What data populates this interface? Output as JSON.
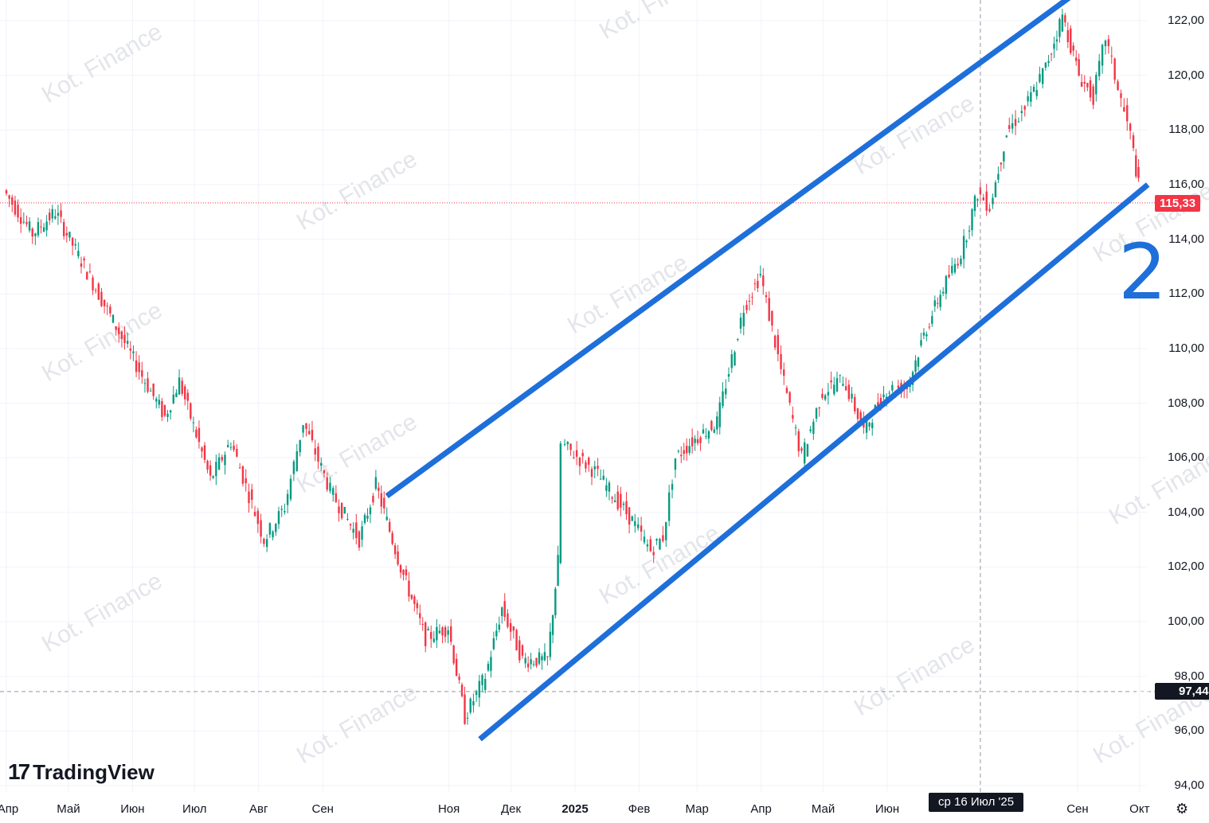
{
  "chart_data": {
    "type": "candlestick",
    "y_axis": {
      "ticks": [
        "122,00",
        "120,00",
        "118,00",
        "116,00",
        "114,00",
        "112,00",
        "110,00",
        "108,00",
        "106,00",
        "104,00",
        "102,00",
        "100,00",
        "98,00",
        "96,00",
        "94,00"
      ],
      "range": [
        93.5,
        122.5
      ]
    },
    "x_axis": {
      "ticks": [
        "Апр",
        "Май",
        "Июн",
        "Июл",
        "Авг",
        "Сен",
        "Ноя",
        "Дек",
        "2025",
        "Фев",
        "Мар",
        "Апр",
        "Май",
        "Июн",
        "Сен",
        "Окт"
      ],
      "range": [
        "2024-04-01",
        "2025-10-05"
      ]
    },
    "close_series": [
      {
        "date": "2024-04-01",
        "close": 115.8
      },
      {
        "date": "2024-04-15",
        "close": 114.2
      },
      {
        "date": "2024-04-26",
        "close": 115.0
      },
      {
        "date": "2024-05-10",
        "close": 113.0
      },
      {
        "date": "2024-05-24",
        "close": 111.0
      },
      {
        "date": "2024-06-07",
        "close": 109.0
      },
      {
        "date": "2024-06-18",
        "close": 107.5
      },
      {
        "date": "2024-06-25",
        "close": 108.8
      },
      {
        "date": "2024-07-10",
        "close": 105.2
      },
      {
        "date": "2024-07-20",
        "close": 106.6
      },
      {
        "date": "2024-08-05",
        "close": 103.0
      },
      {
        "date": "2024-08-15",
        "close": 104.2
      },
      {
        "date": "2024-08-24",
        "close": 107.3
      },
      {
        "date": "2024-09-06",
        "close": 104.8
      },
      {
        "date": "2024-09-20",
        "close": 103.0
      },
      {
        "date": "2024-09-28",
        "close": 105.0
      },
      {
        "date": "2024-10-10",
        "close": 102.0
      },
      {
        "date": "2024-10-22",
        "close": 99.4
      },
      {
        "date": "2024-11-02",
        "close": 99.8
      },
      {
        "date": "2024-11-10",
        "close": 96.5
      },
      {
        "date": "2024-11-20",
        "close": 98.0
      },
      {
        "date": "2024-11-28",
        "close": 100.5
      },
      {
        "date": "2024-12-08",
        "close": 98.6
      },
      {
        "date": "2024-12-20",
        "close": 98.6
      },
      {
        "date": "2024-12-25",
        "close": 102.2
      },
      {
        "date": "2024-12-27",
        "close": 106.5
      },
      {
        "date": "2025-01-12",
        "close": 105.5
      },
      {
        "date": "2025-01-30",
        "close": 103.7
      },
      {
        "date": "2025-02-08",
        "close": 102.6
      },
      {
        "date": "2025-02-14",
        "close": 103.1
      },
      {
        "date": "2025-02-20",
        "close": 106.0
      },
      {
        "date": "2025-02-28",
        "close": 106.6
      },
      {
        "date": "2025-03-12",
        "close": 107.3
      },
      {
        "date": "2025-03-25",
        "close": 111.5
      },
      {
        "date": "2025-04-02",
        "close": 112.7
      },
      {
        "date": "2025-04-12",
        "close": 109.2
      },
      {
        "date": "2025-04-22",
        "close": 106.0
      },
      {
        "date": "2025-05-02",
        "close": 108.4
      },
      {
        "date": "2025-05-12",
        "close": 108.9
      },
      {
        "date": "2025-05-22",
        "close": 107.0
      },
      {
        "date": "2025-06-02",
        "close": 108.5
      },
      {
        "date": "2025-06-12",
        "close": 108.6
      },
      {
        "date": "2025-06-20",
        "close": 110.5
      },
      {
        "date": "2025-06-28",
        "close": 112.0
      },
      {
        "date": "2025-07-08",
        "close": 113.5
      },
      {
        "date": "2025-07-16",
        "close": 115.7
      },
      {
        "date": "2025-07-22",
        "close": 115.2
      },
      {
        "date": "2025-07-30",
        "close": 117.9
      },
      {
        "date": "2025-08-08",
        "close": 118.8
      },
      {
        "date": "2025-08-18",
        "close": 120.3
      },
      {
        "date": "2025-08-26",
        "close": 122.2
      },
      {
        "date": "2025-09-03",
        "close": 120.0
      },
      {
        "date": "2025-09-10",
        "close": 119.2
      },
      {
        "date": "2025-09-16",
        "close": 121.4
      },
      {
        "date": "2025-09-22",
        "close": 119.5
      },
      {
        "date": "2025-09-28",
        "close": 117.8
      },
      {
        "date": "2025-10-03",
        "close": 115.33
      }
    ],
    "last_price": "115,33",
    "last_price_value": 115.33,
    "crosshair_price": "97,44",
    "crosshair_price_value": 97.44,
    "crosshair_date": "ср 16 Июл '25",
    "channel_lines": {
      "upper": [
        {
          "date": "2024-10-02",
          "price": 104.6
        },
        {
          "date": "2025-08-29",
          "price": 122.9
        }
      ],
      "lower": [
        {
          "date": "2024-11-16",
          "price": 95.7
        },
        {
          "date": "2025-10-05",
          "price": 116.0
        }
      ]
    },
    "annotation": "2",
    "colors": {
      "up": "#089981",
      "down": "#f23645",
      "channel": "#1e6fd9",
      "last_price": "#f23645"
    }
  },
  "branding": {
    "logo_mark": "17",
    "logo_text": "TradingView",
    "watermark": "Kot. Finance"
  },
  "icons": {
    "crosshair_add": "plus-circle-icon",
    "settings": "gear-icon"
  }
}
